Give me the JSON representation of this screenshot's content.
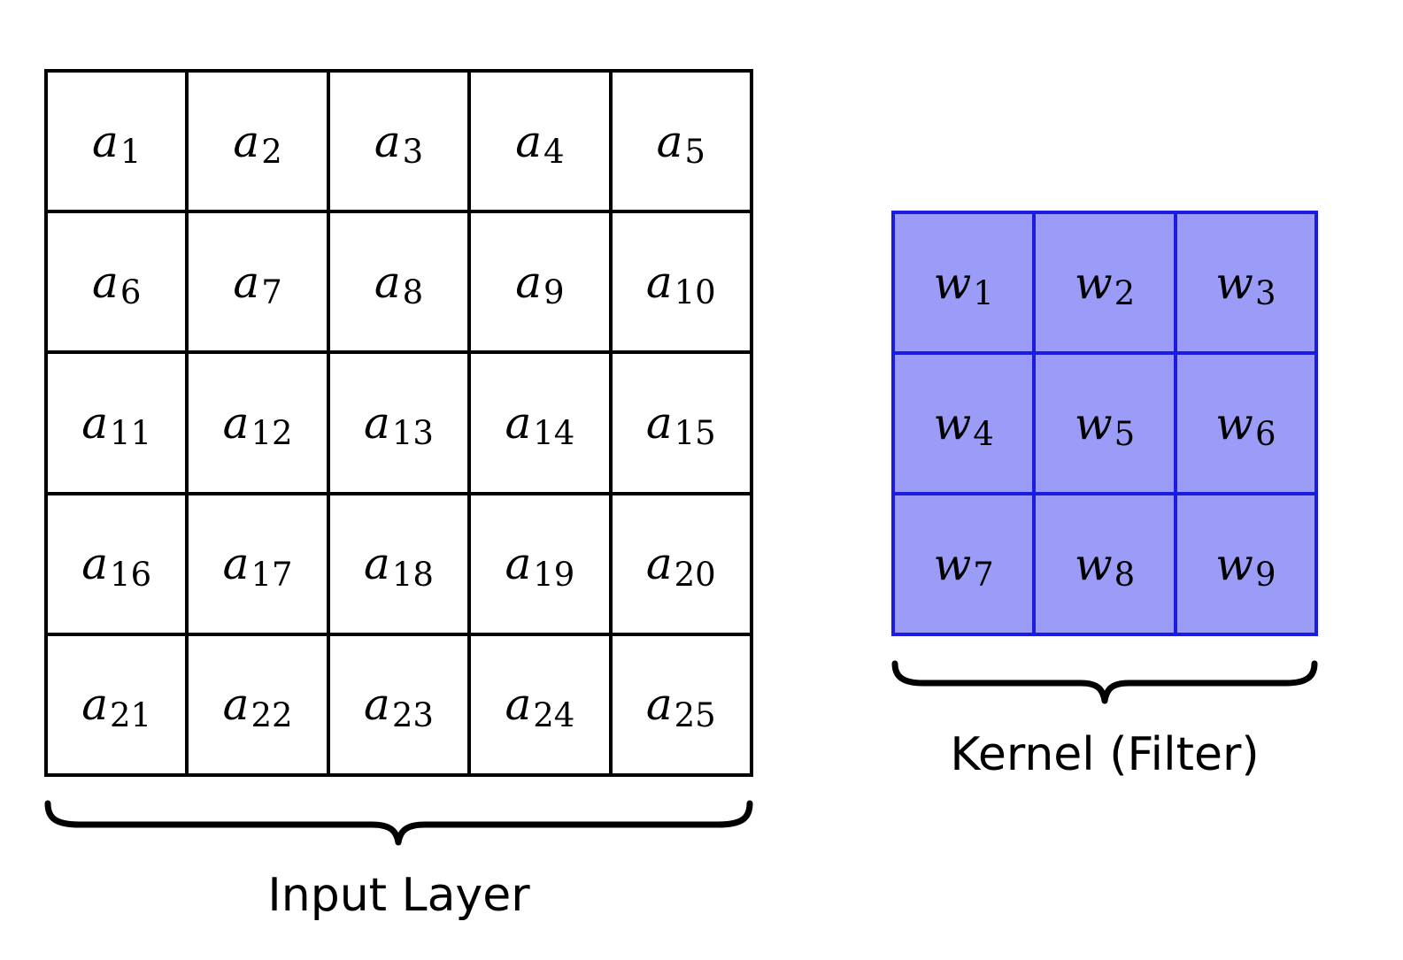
{
  "input_layer": {
    "caption": "Input Layer",
    "symbol": "a",
    "subscripts": [
      "1",
      "2",
      "3",
      "4",
      "5",
      "6",
      "7",
      "8",
      "9",
      "10",
      "11",
      "12",
      "13",
      "14",
      "15",
      "16",
      "17",
      "18",
      "19",
      "20",
      "21",
      "22",
      "23",
      "24",
      "25"
    ]
  },
  "kernel": {
    "caption": "Kernel (Filter)",
    "symbol": "w",
    "subscripts": [
      "1",
      "2",
      "3",
      "4",
      "5",
      "6",
      "7",
      "8",
      "9"
    ]
  },
  "colors": {
    "kernel_fill": "#9a9cf7",
    "kernel_border": "#1c1ce0",
    "input_border": "#000000"
  }
}
